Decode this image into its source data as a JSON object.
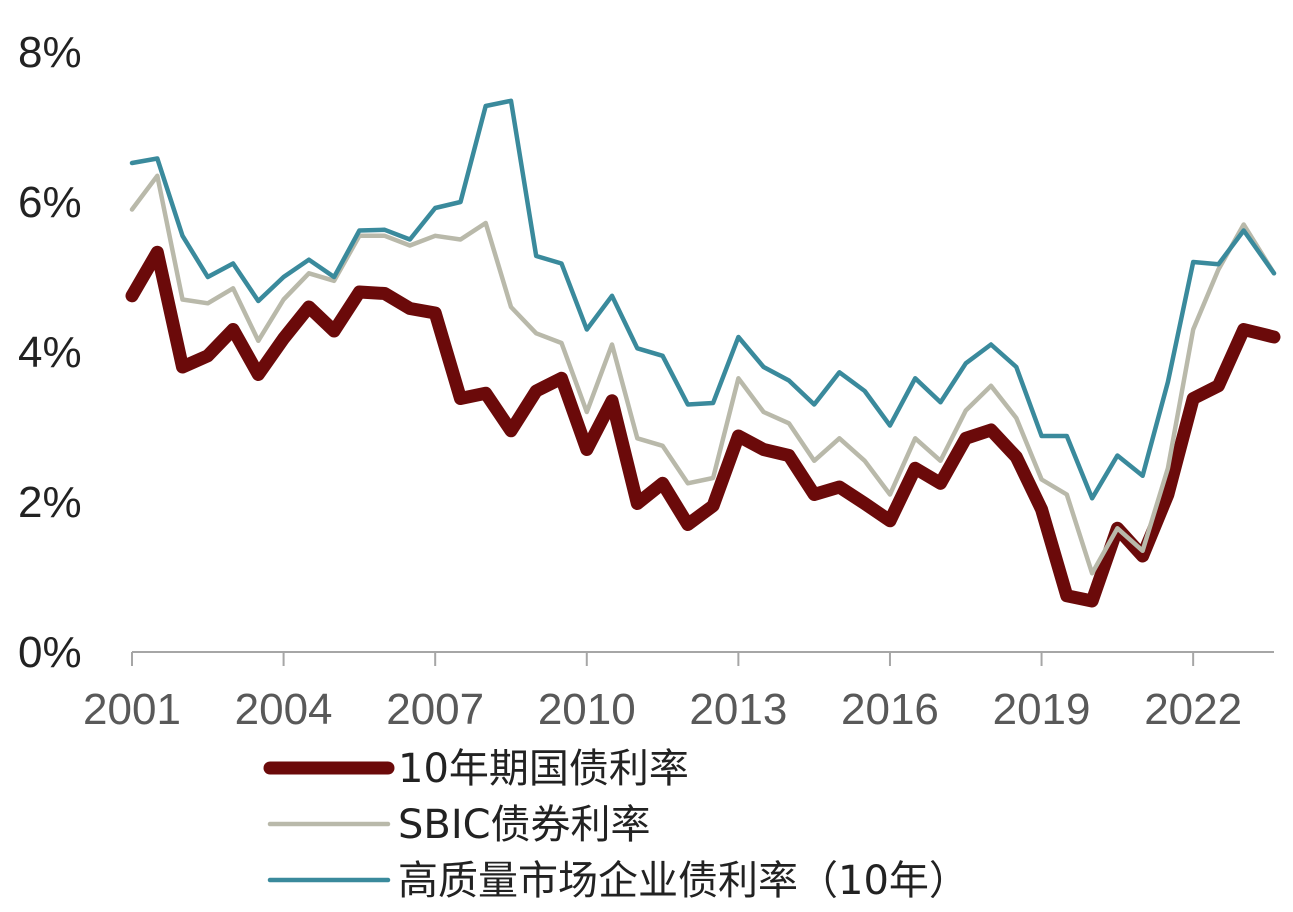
{
  "chart_data": {
    "type": "line",
    "title": "",
    "xlabel": "",
    "ylabel": "",
    "xlim": [
      2001,
      2023.6
    ],
    "ylim": [
      0,
      8
    ],
    "y_ticks": [
      0,
      2,
      4,
      6,
      8
    ],
    "y_tick_labels": [
      "0%",
      "2%",
      "4%",
      "6%",
      "8%"
    ],
    "x_ticks": [
      2001,
      2004,
      2007,
      2010,
      2013,
      2016,
      2019,
      2022
    ],
    "x_tick_labels": [
      "2001",
      "2004",
      "2007",
      "2010",
      "2013",
      "2016",
      "2019",
      "2022"
    ],
    "grid": false,
    "legend_position": "bottom",
    "series": [
      {
        "name": "10年期国债利率",
        "color": "#6b0a0a",
        "stroke": "thick",
        "x": [
          2001.0,
          2001.5,
          2002.0,
          2002.5,
          2003.0,
          2003.5,
          2004.0,
          2004.5,
          2005.0,
          2005.5,
          2006.0,
          2006.5,
          2007.0,
          2007.5,
          2008.0,
          2008.5,
          2009.0,
          2009.5,
          2010.0,
          2010.5,
          2011.0,
          2011.5,
          2012.0,
          2012.5,
          2013.0,
          2013.5,
          2014.0,
          2014.5,
          2015.0,
          2015.5,
          2016.0,
          2016.5,
          2017.0,
          2017.5,
          2018.0,
          2018.5,
          2019.0,
          2019.5,
          2020.0,
          2020.5,
          2021.0,
          2021.5,
          2022.0,
          2022.5,
          2023.0,
          2023.6
        ],
        "values": [
          4.75,
          5.33,
          3.8,
          3.95,
          4.3,
          3.7,
          4.18,
          4.6,
          4.28,
          4.8,
          4.78,
          4.58,
          4.52,
          3.38,
          3.45,
          2.95,
          3.48,
          3.65,
          2.7,
          3.35,
          1.98,
          2.25,
          1.7,
          1.95,
          2.88,
          2.7,
          2.62,
          2.1,
          2.2,
          1.98,
          1.75,
          2.45,
          2.25,
          2.85,
          2.96,
          2.6,
          1.9,
          0.75,
          0.68,
          1.65,
          1.28,
          2.1,
          3.38,
          3.55,
          4.3,
          4.2
        ]
      },
      {
        "name": "SBIC债券利率",
        "color": "#b9b9aa",
        "stroke": "medium",
        "x": [
          2001.0,
          2001.5,
          2002.0,
          2002.5,
          2003.0,
          2003.5,
          2004.0,
          2004.5,
          2005.0,
          2005.5,
          2006.0,
          2006.5,
          2007.0,
          2007.5,
          2008.0,
          2008.5,
          2009.0,
          2009.5,
          2010.0,
          2010.5,
          2011.0,
          2011.5,
          2012.0,
          2012.5,
          2013.0,
          2013.5,
          2014.0,
          2014.5,
          2015.0,
          2015.5,
          2016.0,
          2016.5,
          2017.0,
          2017.5,
          2018.0,
          2018.5,
          2019.0,
          2019.5,
          2020.0,
          2020.5,
          2021.0,
          2021.5,
          2022.0,
          2022.5,
          2023.0,
          2023.6
        ],
        "values": [
          5.9,
          6.35,
          4.7,
          4.65,
          4.85,
          4.15,
          4.7,
          5.05,
          4.95,
          5.55,
          5.55,
          5.42,
          5.55,
          5.5,
          5.72,
          4.6,
          4.25,
          4.12,
          3.2,
          4.1,
          2.85,
          2.75,
          2.25,
          2.32,
          3.65,
          3.2,
          3.05,
          2.55,
          2.85,
          2.55,
          2.1,
          2.85,
          2.55,
          3.22,
          3.55,
          3.12,
          2.3,
          2.1,
          1.05,
          1.65,
          1.35,
          2.45,
          4.3,
          5.1,
          5.7,
          5.05
        ]
      },
      {
        "name": "高质量市场企业债利率（10年）",
        "color": "#3a8a9c",
        "stroke": "medium",
        "x": [
          2001.0,
          2001.5,
          2002.0,
          2002.5,
          2003.0,
          2003.5,
          2004.0,
          2004.5,
          2005.0,
          2005.5,
          2006.0,
          2006.5,
          2007.0,
          2007.5,
          2008.0,
          2008.5,
          2009.0,
          2009.5,
          2010.0,
          2010.5,
          2011.0,
          2011.5,
          2012.0,
          2012.5,
          2013.0,
          2013.5,
          2014.0,
          2014.5,
          2015.0,
          2015.5,
          2016.0,
          2016.5,
          2017.0,
          2017.5,
          2018.0,
          2018.5,
          2019.0,
          2019.5,
          2020.0,
          2020.5,
          2021.0,
          2021.5,
          2022.0,
          2022.5,
          2023.0,
          2023.6
        ],
        "values": [
          6.52,
          6.58,
          5.55,
          5.0,
          5.18,
          4.68,
          5.0,
          5.23,
          5.0,
          5.62,
          5.63,
          5.5,
          5.92,
          6.0,
          7.28,
          7.35,
          5.28,
          5.18,
          4.3,
          4.75,
          4.05,
          3.95,
          3.3,
          3.32,
          4.2,
          3.8,
          3.62,
          3.3,
          3.73,
          3.48,
          3.02,
          3.65,
          3.33,
          3.85,
          4.1,
          3.8,
          2.88,
          2.88,
          2.05,
          2.62,
          2.35,
          3.6,
          5.2,
          5.17,
          5.62,
          5.05
        ]
      }
    ]
  }
}
